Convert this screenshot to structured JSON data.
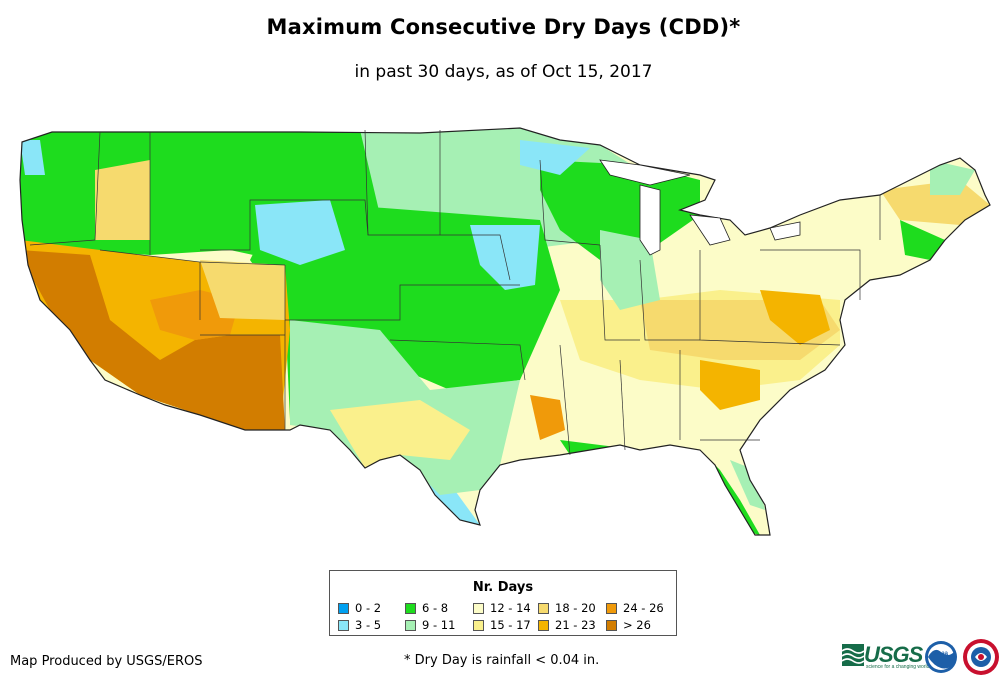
{
  "header": {
    "title": "Maximum Consecutive Dry Days (CDD)*",
    "subtitle": "in past 30 days, as of Oct 15, 2017"
  },
  "legend": {
    "title": "Nr. Days",
    "items": [
      {
        "label": "0 - 2",
        "color": "#00a0f0"
      },
      {
        "label": "3 - 5",
        "color": "#8ae6f8"
      },
      {
        "label": "6 - 8",
        "color": "#1edc1e"
      },
      {
        "label": "9 - 11",
        "color": "#a6f0b4"
      },
      {
        "label": "12 - 14",
        "color": "#fcfcc8"
      },
      {
        "label": "15 - 17",
        "color": "#faf08c"
      },
      {
        "label": "18 - 20",
        "color": "#f6da6e"
      },
      {
        "label": "21 - 23",
        "color": "#f4b400"
      },
      {
        "label": "24 - 26",
        "color": "#f09a0a"
      },
      {
        "label": "> 26",
        "color": "#d27d00"
      }
    ]
  },
  "footer": {
    "credit": "Map Produced by USGS/EROS",
    "footnote": "* Dry Day is rainfall < 0.04 in."
  },
  "logos": {
    "usgs_text": "USGS",
    "usgs_tagline": "science for a changing world",
    "noaa_text": "noaa"
  }
}
